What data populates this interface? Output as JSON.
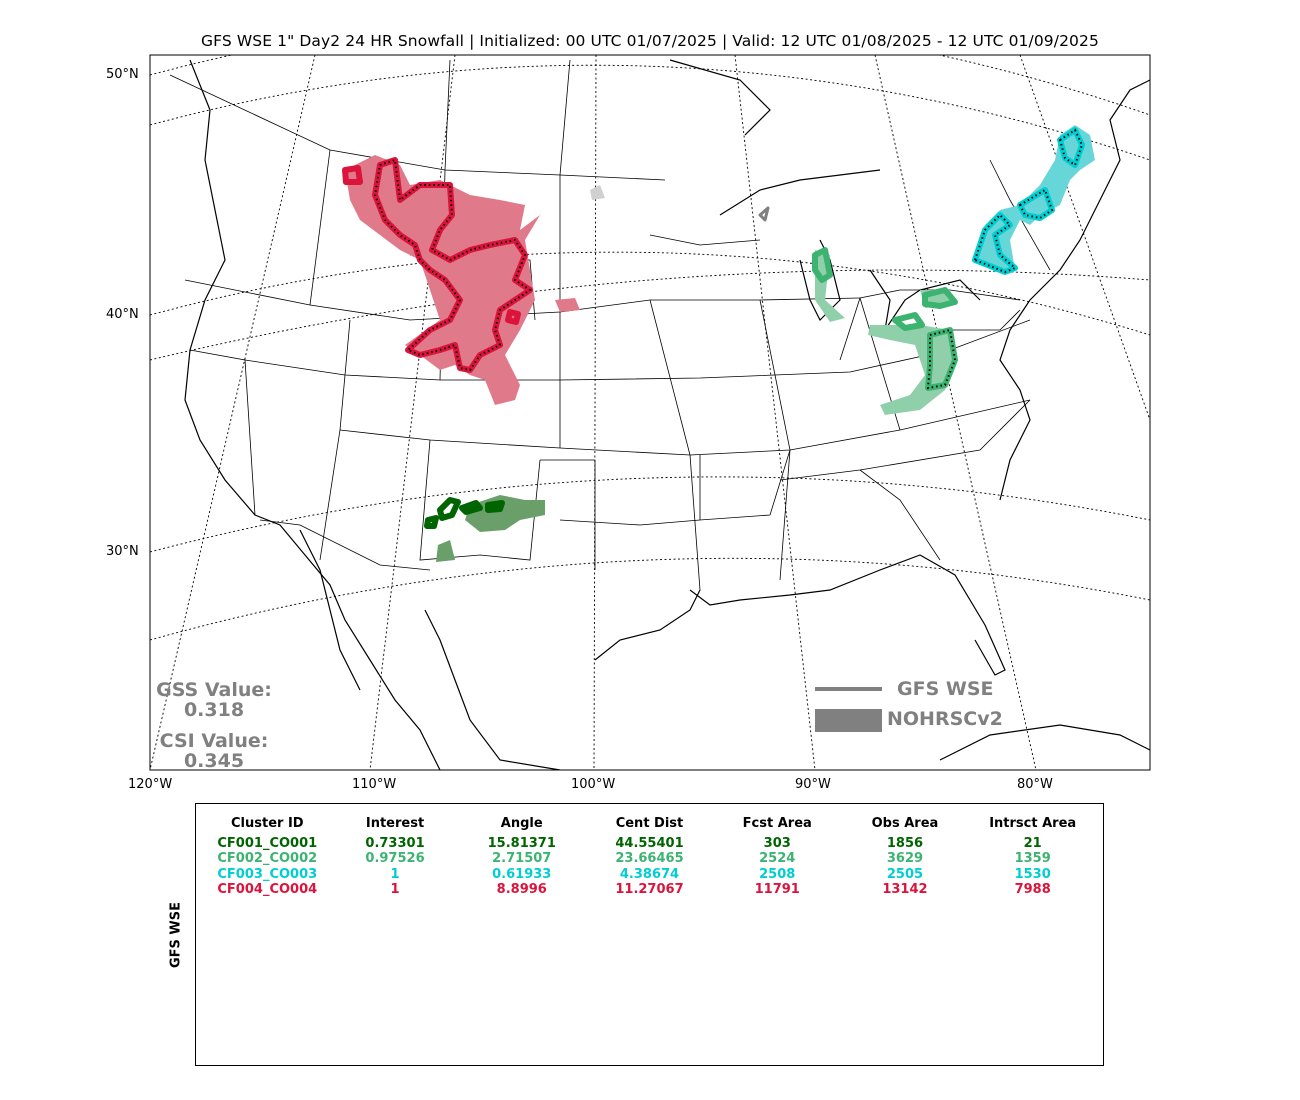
{
  "title": "GFS WSE 1\" Day2 24 HR Snowfall | Initialized: 00 UTC 01/07/2025 | Valid: 12 UTC 01/08/2025 - 12 UTC 01/09/2025",
  "axes": {
    "lat_labels": [
      "50°N",
      "40°N",
      "30°N"
    ],
    "lon_labels": [
      "120°W",
      "110°W",
      "100°W",
      "90°W",
      "80°W"
    ]
  },
  "stats": {
    "gss_label": "GSS Value:",
    "gss_value": "0.318",
    "csi_label": "CSI Value:",
    "csi_value": "0.345"
  },
  "legend": {
    "forecast_label": "GFS WSE",
    "observed_label": "NOHRSCv2",
    "color": "#808080"
  },
  "table": {
    "ylabel": "GFS WSE",
    "headers": [
      "Cluster ID",
      "Interest",
      "Angle",
      "Cent Dist",
      "Fcst Area",
      "Obs Area",
      "Intrsct Area"
    ],
    "rows": [
      {
        "color": "#006400",
        "cells": [
          "CF001_CO001",
          "0.73301",
          "15.81371",
          "44.55401",
          "303",
          "1856",
          "21"
        ]
      },
      {
        "color": "#3cb371",
        "cells": [
          "CF002_CO002",
          "0.97526",
          "2.71507",
          "23.66465",
          "2524",
          "3629",
          "1359"
        ]
      },
      {
        "color": "#00ced1",
        "cells": [
          "CF003_CO003",
          "1",
          "0.61933",
          "4.38674",
          "2508",
          "2505",
          "1530"
        ]
      },
      {
        "color": "#dc143c",
        "cells": [
          "CF004_CO004",
          "1",
          "8.8996",
          "11.27067",
          "11791",
          "13142",
          "7988"
        ]
      }
    ]
  },
  "clusters": {
    "CF001": {
      "color": "#006400",
      "obs_fill": "#6a9f6a"
    },
    "CF002": {
      "color": "#3cb371",
      "obs_fill": "#8fd0ab"
    },
    "CF003": {
      "color": "#00ced1",
      "obs_fill": "#66d6d9"
    },
    "CF004": {
      "color": "#dc143c",
      "obs_fill": "#e07a8a"
    }
  }
}
